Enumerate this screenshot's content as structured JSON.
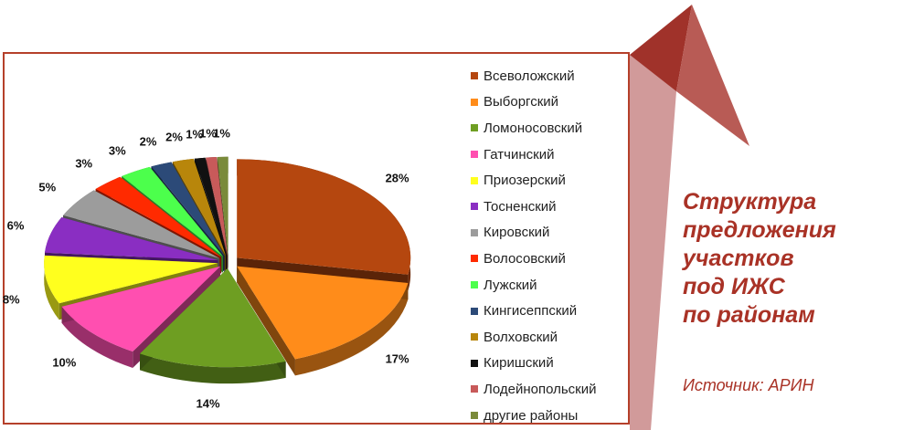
{
  "colors": {
    "frame_border": "#b5402a",
    "title_text": "#a93226",
    "arrow_dark": "#a0322a",
    "arrow_light": "#cc8f8f"
  },
  "title_lines": [
    "Структура",
    "предложения",
    "участков",
    "под ИЖС",
    "по районам"
  ],
  "source": "Источник: АРИН",
  "chart_data": {
    "type": "pie",
    "style": "3d exploded pie",
    "legend_position": "right",
    "categories": [
      "Всеволожский",
      "Выборгский",
      "Ломоносовский",
      "Гатчинский",
      "Приозерский",
      "Тосненский",
      "Кировский",
      "Волосовский",
      "Лужский",
      "Кингисеппский",
      "Волховский",
      "Киришский",
      "Лодейнопольский",
      "другие районы"
    ],
    "values": [
      28,
      17,
      14,
      10,
      8,
      6,
      5,
      3,
      3,
      2,
      2,
      1,
      1,
      1
    ],
    "labels": [
      "28%",
      "17%",
      "14%",
      "10%",
      "8%",
      "6%",
      "5%",
      "3%",
      "3%",
      "2%",
      "2%",
      "1%",
      "1%",
      "1%"
    ],
    "colors": [
      "#b5470f",
      "#ff8c1a",
      "#6e9e22",
      "#ff4fb0",
      "#ffff1e",
      "#8a2ec2",
      "#9c9c9c",
      "#ff2a00",
      "#4cff4c",
      "#2c4a78",
      "#b8860b",
      "#111111",
      "#c85a5a",
      "#7a8a3a"
    ]
  }
}
